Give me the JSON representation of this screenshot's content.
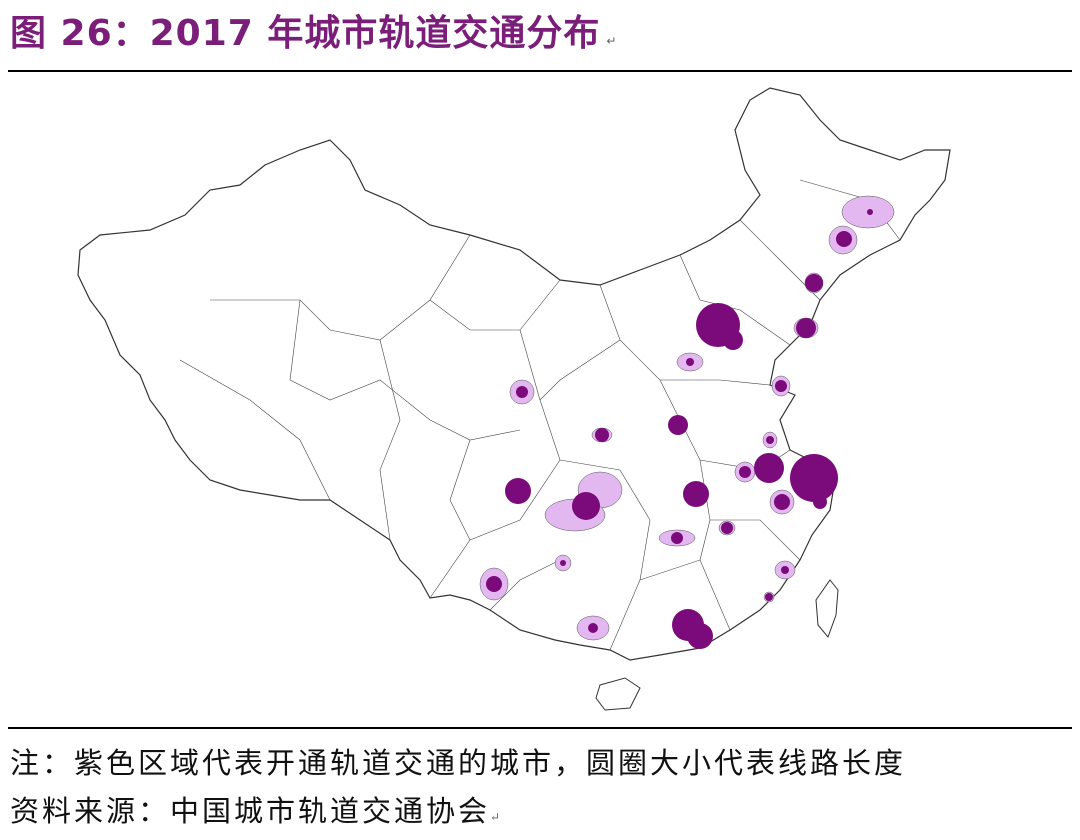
{
  "document": {
    "figure_title": "图 26：2017 年城市轨道交通分布",
    "paragraph_mark": "↵",
    "note": "注：紫色区域代表开通轨道交通的城市，圆圈大小代表线路长度",
    "source": "资料来源：中国城市轨道交通协会"
  },
  "map": {
    "region": "China",
    "legend_meaning": {
      "purple_region": "开通轨道交通的城市",
      "circle_size": "线路长度"
    },
    "colors": {
      "region_fill": "#e3b8f0",
      "circle_fill": "#7b0a7b",
      "border": "#333333",
      "title": "#7b1e7a"
    }
  }
}
